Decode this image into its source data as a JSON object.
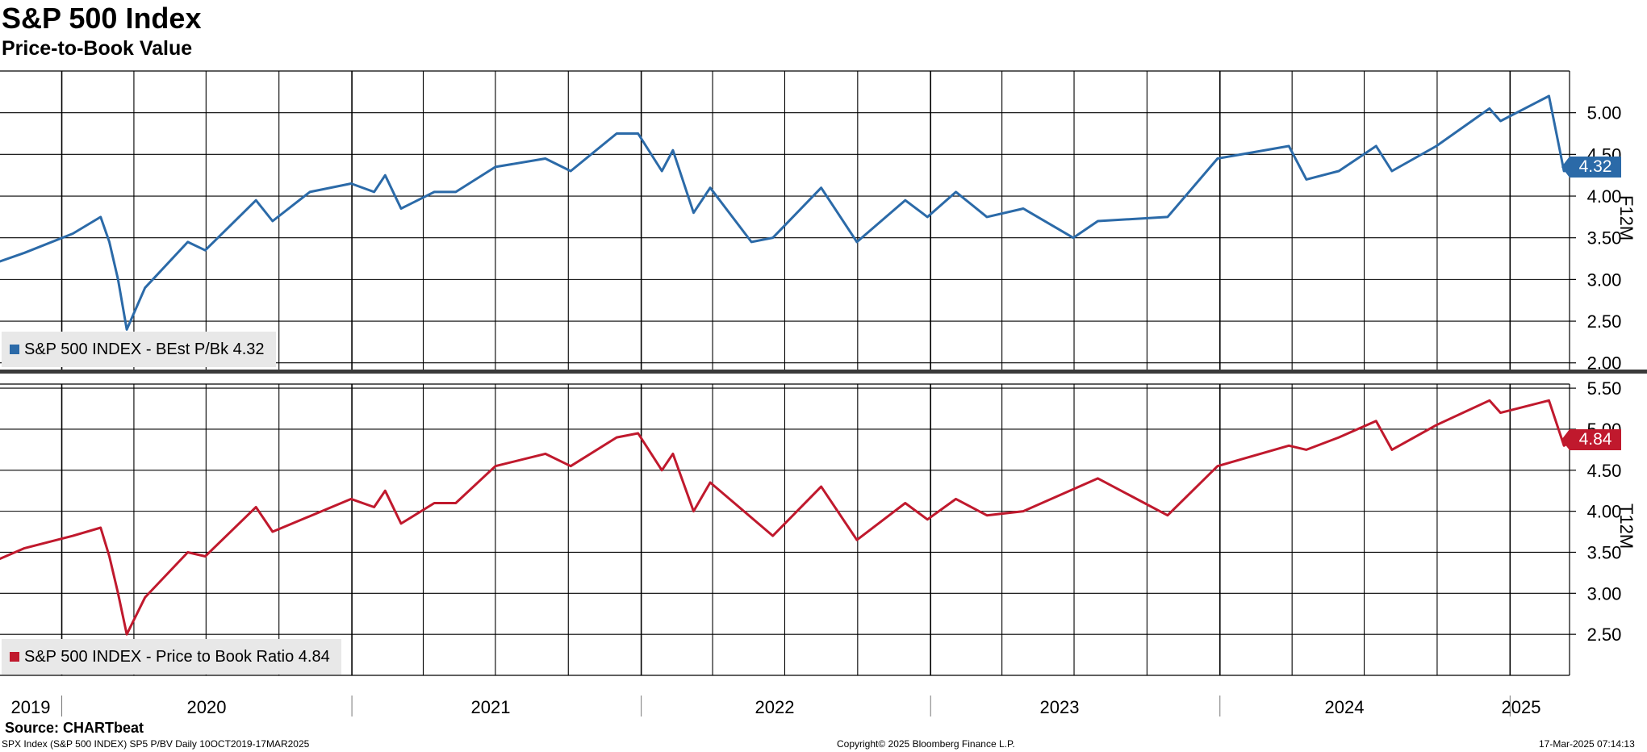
{
  "header": {
    "title": "S&P 500 Index",
    "subtitle": "Price-to-Book Value"
  },
  "footer": {
    "source": "Source: CHARTbeat",
    "ticker_info": "SPX Index (S&P 500 INDEX) SP5 P/BV  Daily 10OCT2019-17MAR2025",
    "copyright": "Copyright© 2025 Bloomberg Finance L.P.",
    "timestamp": "17-Mar-2025 07:14:13"
  },
  "x_axis": {
    "year_labels": [
      "2019",
      "2020",
      "2021",
      "2022",
      "2023",
      "2024",
      "2025"
    ]
  },
  "colors": {
    "top_series": "#2b6aa8",
    "bottom_series": "#c0192d",
    "grid": "#000000",
    "legend_bg": "#e8e8e8"
  },
  "chart_data": [
    {
      "type": "line",
      "panel": "top",
      "legend": "S&P 500 INDEX - BEst P/Bk 4.32",
      "axis_name": "F12M",
      "last_value_label": "4.32",
      "ylim": [
        1.92,
        5.5
      ],
      "y_ticks": [
        "2.00",
        "2.50",
        "3.00",
        "3.50",
        "4.00",
        "4.50",
        "5.00"
      ],
      "grid": true,
      "x": [
        "2019-10-10",
        "2019-11-15",
        "2020-01-15",
        "2020-02-19",
        "2020-03-01",
        "2020-03-12",
        "2020-03-23",
        "2020-04-15",
        "2020-06-08",
        "2020-06-30",
        "2020-09-02",
        "2020-09-23",
        "2020-11-09",
        "2020-12-31",
        "2021-01-29",
        "2021-02-12",
        "2021-03-04",
        "2021-04-15",
        "2021-05-12",
        "2021-07-01",
        "2021-09-02",
        "2021-10-04",
        "2021-12-01",
        "2021-12-28",
        "2022-01-27",
        "2022-02-10",
        "2022-03-08",
        "2022-03-29",
        "2022-05-20",
        "2022-06-16",
        "2022-08-16",
        "2022-09-30",
        "2022-11-30",
        "2022-12-28",
        "2023-02-02",
        "2023-03-13",
        "2023-04-28",
        "2023-06-30",
        "2023-07-31",
        "2023-10-27",
        "2023-12-29",
        "2024-03-28",
        "2024-04-19",
        "2024-05-30",
        "2024-07-16",
        "2024-08-05",
        "2024-09-30",
        "2024-12-06",
        "2024-12-20",
        "2025-02-19",
        "2025-03-10",
        "2025-03-17"
      ],
      "y": [
        3.2,
        3.32,
        3.55,
        3.75,
        3.45,
        3.0,
        2.4,
        2.9,
        3.45,
        3.35,
        3.95,
        3.7,
        4.05,
        4.15,
        4.05,
        4.25,
        3.85,
        4.05,
        4.05,
        4.35,
        4.45,
        4.3,
        4.75,
        4.75,
        4.3,
        4.55,
        3.8,
        4.1,
        3.45,
        3.5,
        4.1,
        3.45,
        3.95,
        3.75,
        4.05,
        3.75,
        3.85,
        3.5,
        3.7,
        3.75,
        4.45,
        4.6,
        4.2,
        4.3,
        4.6,
        4.3,
        4.6,
        5.05,
        4.9,
        5.2,
        4.3,
        4.32
      ]
    },
    {
      "type": "line",
      "panel": "bottom",
      "legend": "S&P 500 INDEX - Price to Book Ratio 4.84",
      "axis_name": "T12M",
      "last_value_label": "4.84",
      "ylim": [
        2.0,
        5.55
      ],
      "y_ticks": [
        "2.50",
        "3.00",
        "3.50",
        "4.00",
        "4.50",
        "5.00",
        "5.50"
      ],
      "grid": true,
      "x": [
        "2019-10-10",
        "2019-11-15",
        "2020-01-15",
        "2020-02-19",
        "2020-03-01",
        "2020-03-12",
        "2020-03-23",
        "2020-04-15",
        "2020-06-08",
        "2020-06-30",
        "2020-09-02",
        "2020-09-23",
        "2020-12-31",
        "2021-01-29",
        "2021-02-12",
        "2021-03-04",
        "2021-04-15",
        "2021-05-12",
        "2021-07-01",
        "2021-09-02",
        "2021-10-04",
        "2021-12-01",
        "2021-12-28",
        "2022-01-27",
        "2022-02-10",
        "2022-03-08",
        "2022-03-29",
        "2022-06-16",
        "2022-08-16",
        "2022-09-30",
        "2022-11-30",
        "2022-12-28",
        "2023-02-02",
        "2023-03-13",
        "2023-04-28",
        "2023-07-31",
        "2023-10-27",
        "2023-12-29",
        "2024-03-28",
        "2024-04-19",
        "2024-05-30",
        "2024-07-16",
        "2024-08-05",
        "2024-09-30",
        "2024-12-06",
        "2024-12-20",
        "2025-02-19",
        "2025-03-10",
        "2025-03-17"
      ],
      "y": [
        3.4,
        3.55,
        3.7,
        3.8,
        3.45,
        3.0,
        2.5,
        2.95,
        3.5,
        3.45,
        4.05,
        3.75,
        4.15,
        4.05,
        4.25,
        3.85,
        4.1,
        4.1,
        4.55,
        4.7,
        4.55,
        4.9,
        4.95,
        4.5,
        4.7,
        4.0,
        4.35,
        3.7,
        4.3,
        3.65,
        4.1,
        3.9,
        4.15,
        3.95,
        4.0,
        4.4,
        3.95,
        4.55,
        4.8,
        4.75,
        4.9,
        5.1,
        4.75,
        5.05,
        5.35,
        5.2,
        5.35,
        4.8,
        4.84
      ]
    }
  ]
}
